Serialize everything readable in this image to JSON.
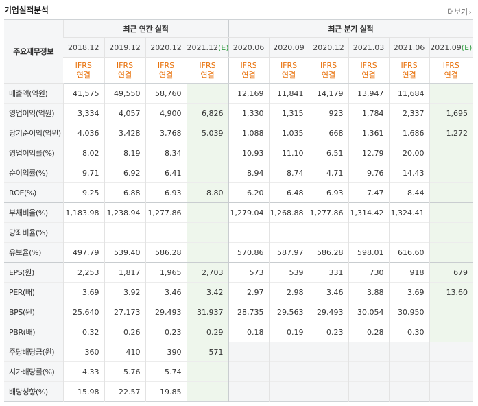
{
  "header": {
    "title": "기업실적분석",
    "more_label": "더보기"
  },
  "table": {
    "row_header": "주요재무정보",
    "annual_group": "최근 연간 실적",
    "quarter_group": "최근 분기 실적",
    "annual_periods": [
      {
        "label": "2018.12",
        "est": ""
      },
      {
        "label": "2019.12",
        "est": ""
      },
      {
        "label": "2020.12",
        "est": ""
      },
      {
        "label": "2021.12",
        "est": "(E)"
      }
    ],
    "quarter_periods": [
      {
        "label": "2020.06",
        "est": ""
      },
      {
        "label": "2020.09",
        "est": ""
      },
      {
        "label": "2020.12",
        "est": ""
      },
      {
        "label": "2021.03",
        "est": ""
      },
      {
        "label": "2021.06",
        "est": ""
      },
      {
        "label": "2021.09",
        "est": "(E)"
      }
    ],
    "standard_top": "IFRS",
    "standard_bottom": "연결",
    "rows": [
      {
        "label": "매출액(억원)",
        "annual": [
          "41,575",
          "49,550",
          "58,760",
          ""
        ],
        "quarter": [
          "12,169",
          "11,841",
          "14,179",
          "13,947",
          "11,684",
          ""
        ]
      },
      {
        "label": "영업이익(억원)",
        "annual": [
          "3,334",
          "4,057",
          "4,900",
          "6,826"
        ],
        "quarter": [
          "1,330",
          "1,315",
          "923",
          "1,784",
          "2,337",
          "1,695"
        ]
      },
      {
        "label": "당기순이익(억원)",
        "annual": [
          "4,036",
          "3,428",
          "3,768",
          "5,039"
        ],
        "quarter": [
          "1,088",
          "1,035",
          "668",
          "1,361",
          "1,686",
          "1,272"
        ]
      },
      {
        "label": "영업이익률(%)",
        "annual": [
          "8.02",
          "8.19",
          "8.34",
          ""
        ],
        "quarter": [
          "10.93",
          "11.10",
          "6.51",
          "12.79",
          "20.00",
          ""
        ]
      },
      {
        "label": "순이익률(%)",
        "annual": [
          "9.71",
          "6.92",
          "6.41",
          ""
        ],
        "quarter": [
          "8.94",
          "8.74",
          "4.71",
          "9.76",
          "14.43",
          ""
        ]
      },
      {
        "label": "ROE(%)",
        "annual": [
          "9.25",
          "6.88",
          "6.93",
          "8.80"
        ],
        "quarter": [
          "6.20",
          "6.48",
          "6.93",
          "7.47",
          "8.44",
          ""
        ]
      },
      {
        "label": "부채비율(%)",
        "annual": [
          "1,183.98",
          "1,238.94",
          "1,277.86",
          ""
        ],
        "quarter": [
          "1,279.04",
          "1,268.88",
          "1,277.86",
          "1,314.42",
          "1,324.41",
          ""
        ]
      },
      {
        "label": "당좌비율(%)",
        "annual": [
          "",
          "",
          "",
          ""
        ],
        "quarter": [
          "",
          "",
          "",
          "",
          "",
          ""
        ]
      },
      {
        "label": "유보율(%)",
        "annual": [
          "497.79",
          "539.40",
          "586.28",
          ""
        ],
        "quarter": [
          "570.86",
          "587.97",
          "586.28",
          "598.01",
          "616.60",
          ""
        ]
      },
      {
        "label": "EPS(원)",
        "annual": [
          "2,253",
          "1,817",
          "1,965",
          "2,703"
        ],
        "quarter": [
          "573",
          "539",
          "331",
          "730",
          "918",
          "679"
        ]
      },
      {
        "label": "PER(배)",
        "annual": [
          "3.69",
          "3.92",
          "3.46",
          "3.42"
        ],
        "quarter": [
          "2.97",
          "2.98",
          "3.46",
          "3.88",
          "3.69",
          "13.60"
        ]
      },
      {
        "label": "BPS(원)",
        "annual": [
          "25,640",
          "27,173",
          "29,493",
          "31,937"
        ],
        "quarter": [
          "28,735",
          "29,563",
          "29,493",
          "30,054",
          "30,950",
          ""
        ]
      },
      {
        "label": "PBR(배)",
        "annual": [
          "0.32",
          "0.26",
          "0.23",
          "0.29"
        ],
        "quarter": [
          "0.18",
          "0.19",
          "0.23",
          "0.28",
          "0.30",
          ""
        ]
      },
      {
        "label": "주당배당금(원)",
        "annual": [
          "360",
          "410",
          "390",
          "571"
        ],
        "quarter": [
          "",
          "",
          "",
          "",
          "",
          ""
        ]
      },
      {
        "label": "시가배당률(%)",
        "annual": [
          "4.33",
          "5.76",
          "5.74",
          ""
        ],
        "quarter": [
          "",
          "",
          "",
          "",
          "",
          ""
        ]
      },
      {
        "label": "배당성향(%)",
        "annual": [
          "15.98",
          "22.57",
          "19.85",
          ""
        ],
        "quarter": [
          "",
          "",
          "",
          "",
          "",
          ""
        ]
      }
    ]
  }
}
